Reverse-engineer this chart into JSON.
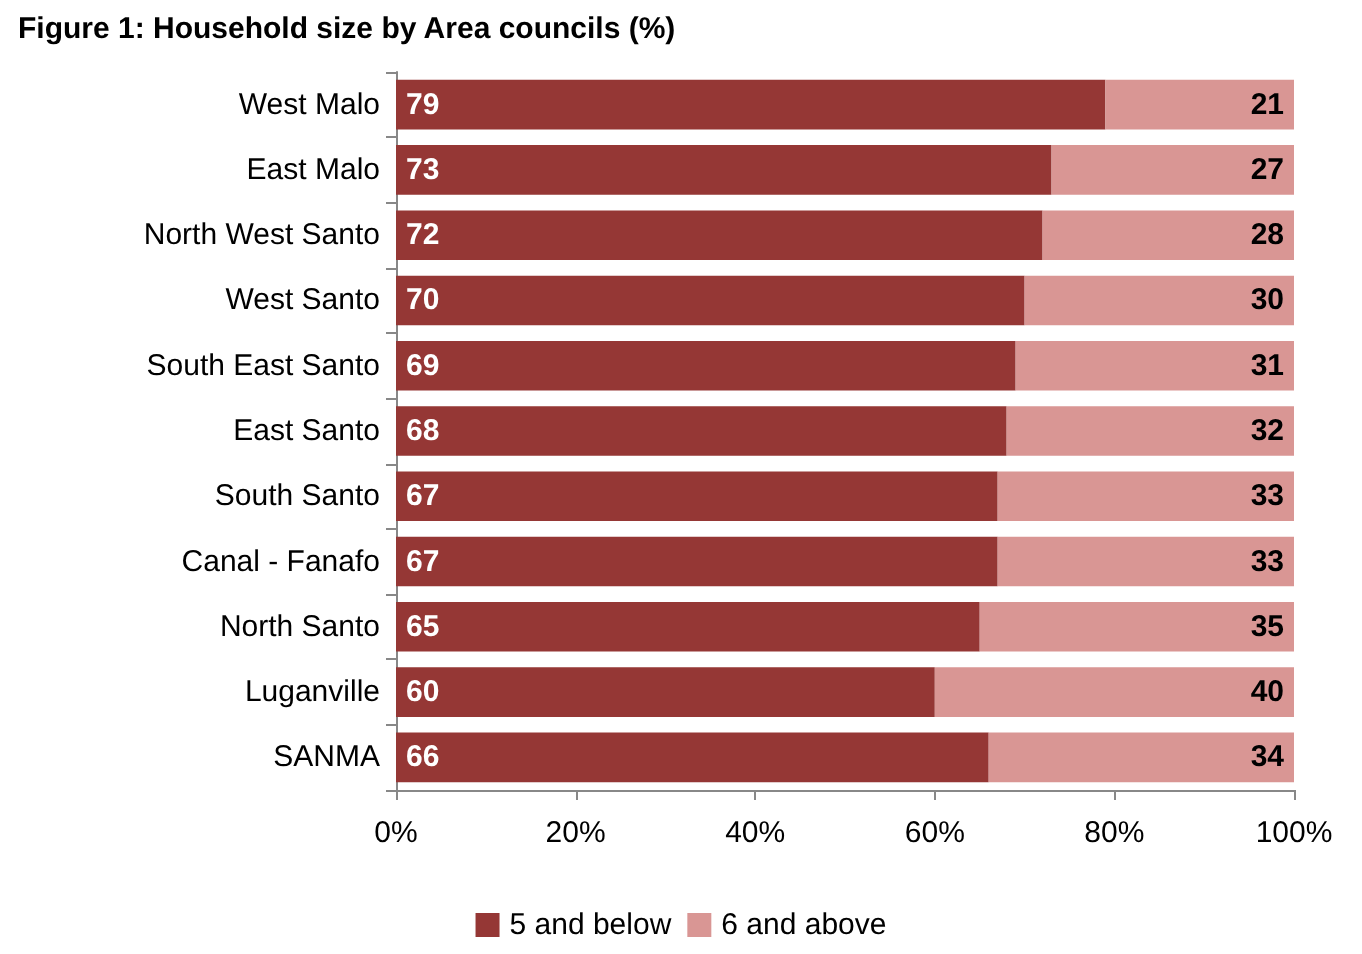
{
  "chart_data": {
    "type": "bar",
    "title": "Figure 1: Household size by Area councils (%)",
    "orientation": "horizontal",
    "stacked": true,
    "data_labels": true,
    "grid": false,
    "legend": "bottom",
    "categories": [
      "West Malo",
      "East Malo",
      "North West Santo",
      "West Santo",
      "South East Santo",
      "East Santo",
      "South Santo",
      "Canal - Fanafo",
      "North Santo",
      "Luganville",
      "SANMA"
    ],
    "series": [
      {
        "name": "5 and below",
        "color": "#953735",
        "values": [
          79,
          73,
          72,
          70,
          69,
          68,
          67,
          67,
          65,
          60,
          66
        ]
      },
      {
        "name": "6 and above",
        "color": "#d99694",
        "values": [
          21,
          27,
          28,
          30,
          31,
          32,
          33,
          33,
          35,
          40,
          34
        ]
      }
    ],
    "xlim": [
      0,
      100
    ],
    "xticks": [
      {
        "value": 0,
        "label": "0%"
      },
      {
        "value": 20,
        "label": "20%"
      },
      {
        "value": 40,
        "label": "40%"
      },
      {
        "value": 60,
        "label": "60%"
      },
      {
        "value": 80,
        "label": "80%"
      },
      {
        "value": 100,
        "label": "100%"
      }
    ]
  }
}
